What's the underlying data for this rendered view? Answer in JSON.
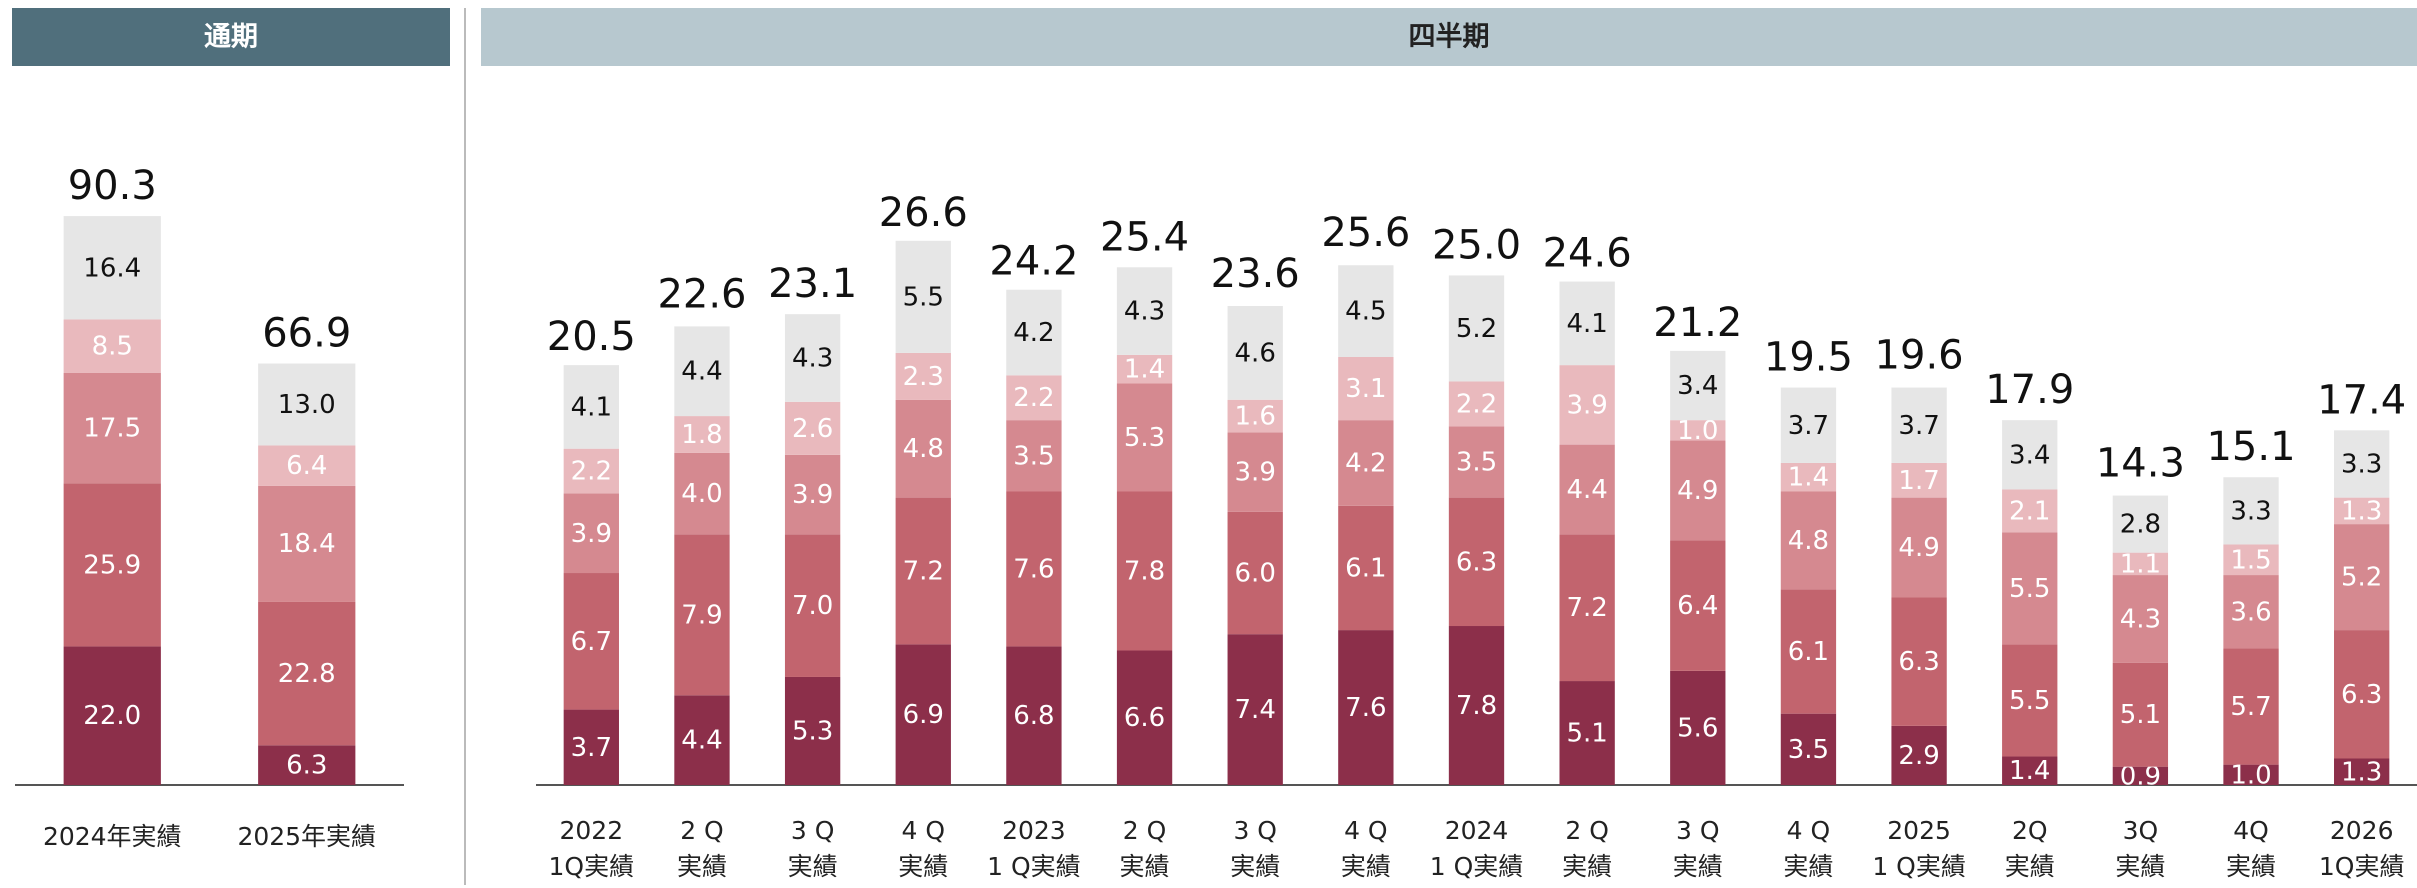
{
  "chart_data": [
    {
      "type": "stacked_bar",
      "header": "通期",
      "categories": [
        [
          "2024年実績"
        ],
        [
          "2025年実績"
        ]
      ],
      "ylim": [
        0,
        110
      ],
      "totals": [
        90.3,
        66.9
      ],
      "total_labels": [
        "90.3",
        "66.9"
      ],
      "series": [
        {
          "color": "#8c2f4a",
          "label_color": "#ffffff",
          "values": [
            22.0,
            6.3
          ],
          "value_labels": [
            "22.0",
            "6.3"
          ]
        },
        {
          "color": "#c2646e",
          "label_color": "#ffffff",
          "values": [
            25.9,
            22.8
          ],
          "value_labels": [
            "25.9",
            "22.8"
          ]
        },
        {
          "color": "#d58990",
          "label_color": "#ffffff",
          "values": [
            17.5,
            18.4
          ],
          "value_labels": [
            "17.5",
            "18.4"
          ]
        },
        {
          "color": "#e9b9bd",
          "label_color": "#ffffff",
          "values": [
            8.5,
            6.4
          ],
          "value_labels": [
            "8.5",
            "6.4"
          ]
        },
        {
          "color": "#e6e6e6",
          "label_color": "#111111",
          "values": [
            16.4,
            13.0
          ],
          "value_labels": [
            "16.4",
            "13.0"
          ]
        }
      ]
    },
    {
      "type": "stacked_bar",
      "header": "四半期",
      "categories": [
        [
          "2022",
          "1Q実績"
        ],
        [
          "2 Q",
          "実績"
        ],
        [
          "3 Q",
          "実績"
        ],
        [
          "4 Q",
          "実績"
        ],
        [
          "2023",
          "1 Q実績"
        ],
        [
          "2 Q",
          "実績"
        ],
        [
          "3 Q",
          "実績"
        ],
        [
          "4 Q",
          "実績"
        ],
        [
          "2024",
          "1 Q実績"
        ],
        [
          "2 Q",
          "実績"
        ],
        [
          "3 Q",
          "実績"
        ],
        [
          "4 Q",
          "実績"
        ],
        [
          "2025",
          "1 Q実績"
        ],
        [
          "2Q",
          "実績"
        ],
        [
          "3Q",
          "実績"
        ],
        [
          "4Q",
          "実績"
        ],
        [
          "2026",
          "1Q実績"
        ]
      ],
      "ylim": [
        0,
        34
      ],
      "totals": [
        20.5,
        22.6,
        23.1,
        26.6,
        24.2,
        25.4,
        23.6,
        25.6,
        25.0,
        24.6,
        21.2,
        19.5,
        19.6,
        17.9,
        14.3,
        15.1,
        17.4
      ],
      "total_labels": [
        "20.5",
        "22.6",
        "23.1",
        "26.6",
        "24.2",
        "25.4",
        "23.6",
        "25.6",
        "25.0",
        "24.6",
        "21.2",
        "19.5",
        "19.6",
        "17.9",
        "14.3",
        "15.1",
        "17.4"
      ],
      "series": [
        {
          "color": "#8c2f4a",
          "label_color": "#ffffff",
          "values": [
            3.7,
            4.4,
            5.3,
            6.9,
            6.8,
            6.6,
            7.4,
            7.6,
            7.8,
            5.1,
            5.6,
            3.5,
            2.9,
            1.4,
            0.9,
            1.0,
            1.3
          ],
          "value_labels": [
            "3.7",
            "4.4",
            "5.3",
            "6.9",
            "6.8",
            "6.6",
            "7.4",
            "7.6",
            "7.8",
            "5.1",
            "5.6",
            "3.5",
            "2.9",
            "1.4",
            "0.9",
            "1.0",
            "1.3"
          ]
        },
        {
          "color": "#c2646e",
          "label_color": "#ffffff",
          "values": [
            6.7,
            7.9,
            7.0,
            7.2,
            7.6,
            7.8,
            6.0,
            6.1,
            6.3,
            7.2,
            6.4,
            6.1,
            6.3,
            5.5,
            5.1,
            5.7,
            6.3
          ],
          "value_labels": [
            "6.7",
            "7.9",
            "7.0",
            "7.2",
            "7.6",
            "7.8",
            "6.0",
            "6.1",
            "6.3",
            "7.2",
            "6.4",
            "6.1",
            "6.3",
            "5.5",
            "5.1",
            "5.7",
            "6.3"
          ]
        },
        {
          "color": "#d58990",
          "label_color": "#ffffff",
          "values": [
            3.9,
            4.0,
            3.9,
            4.8,
            3.5,
            5.3,
            3.9,
            4.2,
            3.5,
            4.4,
            4.9,
            4.8,
            4.9,
            5.5,
            4.3,
            3.6,
            5.2
          ],
          "value_labels": [
            "3.9",
            "4.0",
            "3.9",
            "4.8",
            "3.5",
            "5.3",
            "3.9",
            "4.2",
            "3.5",
            "4.4",
            "4.9",
            "4.8",
            "4.9",
            "5.5",
            "4.3",
            "3.6",
            "5.2"
          ]
        },
        {
          "color": "#e9b9bd",
          "label_color": "#ffffff",
          "values": [
            2.2,
            1.8,
            2.6,
            2.3,
            2.2,
            1.4,
            1.6,
            3.1,
            2.2,
            3.9,
            1.0,
            1.4,
            1.7,
            2.1,
            1.1,
            1.5,
            1.3
          ],
          "value_labels": [
            "2.2",
            "1.8",
            "2.6",
            "2.3",
            "2.2",
            "1.4",
            "1.6",
            "3.1",
            "2.2",
            "3.9",
            "1.0",
            "1.4",
            "1.7",
            "2.1",
            "1.1",
            "1.5",
            "1.3"
          ]
        },
        {
          "color": "#e6e6e6",
          "label_color": "#111111",
          "values": [
            4.1,
            4.4,
            4.3,
            5.5,
            4.2,
            4.3,
            4.6,
            4.5,
            5.2,
            4.1,
            3.4,
            3.7,
            3.7,
            3.4,
            2.8,
            3.3,
            3.3
          ],
          "value_labels": [
            "4.1",
            "4.4",
            "4.3",
            "5.5",
            "4.2",
            "4.3",
            "4.6",
            "4.5",
            "5.2",
            "4.1",
            "3.4",
            "3.7",
            "3.7",
            "3.4",
            "2.8",
            "3.3",
            "3.3"
          ]
        }
      ]
    }
  ]
}
